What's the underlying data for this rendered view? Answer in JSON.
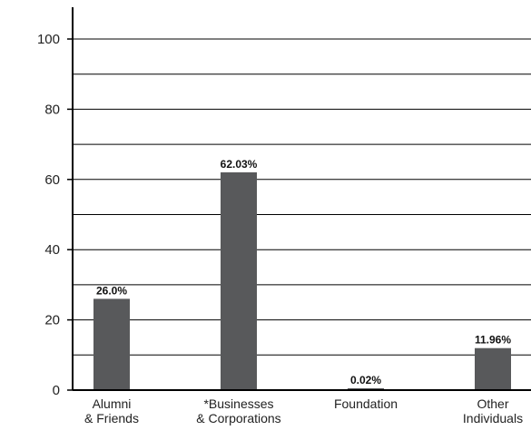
{
  "chart_data": {
    "type": "bar",
    "categories": [
      [
        "Alumni",
        "& Friends"
      ],
      [
        "*Businesses",
        "& Corporations"
      ],
      [
        "Foundation"
      ],
      [
        "Other",
        "Individuals"
      ]
    ],
    "values": [
      26.0,
      62.03,
      0.02,
      11.96
    ],
    "data_labels": [
      "26.0%",
      "62.03%",
      "0.02%",
      "11.96%"
    ],
    "ylim": [
      0,
      100
    ],
    "yticks": [
      0,
      20,
      40,
      60,
      80,
      100
    ],
    "ytick_labels": [
      "0",
      "20",
      "40",
      "60",
      "80",
      "100"
    ],
    "grid_step": 10,
    "grid": true,
    "bar_color": "#58595b",
    "axis_color": "#000000"
  }
}
